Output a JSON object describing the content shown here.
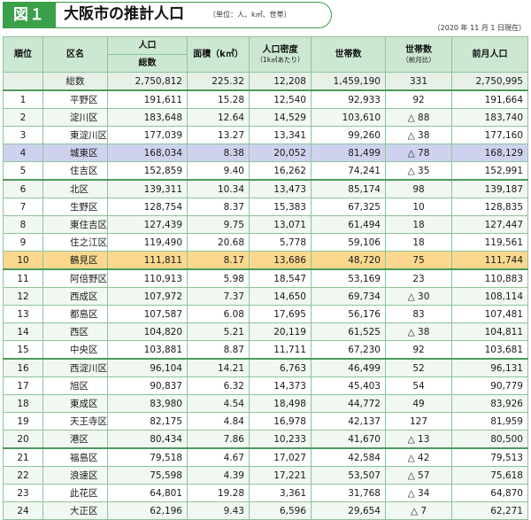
{
  "header": {
    "fig_label": "図１",
    "title": "大阪市の推計人口",
    "unit_note": "（単位：人、k㎡、世帯）",
    "date_note": "（2020 年 11 月 1 日現在）"
  },
  "columns": {
    "rank": "順位",
    "ward": "区名",
    "population_top": "人口",
    "population_sub": "総数",
    "area": "面積（k㎡）",
    "density": "人口密度",
    "density_sub": "（1k㎡あたり）",
    "households": "世帯数",
    "household_change": "世帯数",
    "household_change_sub": "（前月比）",
    "prev_month": "前月人口"
  },
  "total_row": {
    "label": "総数",
    "population": "2,750,812",
    "area": "225.32",
    "density": "12,208",
    "households": "1,459,190",
    "change": "331",
    "prev": "2,750,995"
  },
  "rows": [
    {
      "rank": "1",
      "ward": "平野区",
      "pop": "191,611",
      "area": "15.28",
      "density": "12,540",
      "hh": "92,933",
      "chg": "92",
      "prev": "191,664"
    },
    {
      "rank": "2",
      "ward": "淀川区",
      "pop": "183,648",
      "area": "12.64",
      "density": "14,529",
      "hh": "103,610",
      "chg": "△ 88",
      "prev": "183,740"
    },
    {
      "rank": "3",
      "ward": "東淀川区",
      "pop": "177,039",
      "area": "13.27",
      "density": "13,341",
      "hh": "99,260",
      "chg": "△ 38",
      "prev": "177,160"
    },
    {
      "rank": "4",
      "ward": "城東区",
      "pop": "168,034",
      "area": "8.38",
      "density": "20,052",
      "hh": "81,499",
      "chg": "△ 78",
      "prev": "168,129"
    },
    {
      "rank": "5",
      "ward": "住吉区",
      "pop": "152,859",
      "area": "9.40",
      "density": "16,262",
      "hh": "74,241",
      "chg": "△ 35",
      "prev": "152,991"
    },
    {
      "rank": "6",
      "ward": "北区",
      "pop": "139,311",
      "area": "10.34",
      "density": "13,473",
      "hh": "85,174",
      "chg": "98",
      "prev": "139,187"
    },
    {
      "rank": "7",
      "ward": "生野区",
      "pop": "128,754",
      "area": "8.37",
      "density": "15,383",
      "hh": "67,325",
      "chg": "10",
      "prev": "128,835"
    },
    {
      "rank": "8",
      "ward": "東住吉区",
      "pop": "127,439",
      "area": "9.75",
      "density": "13,071",
      "hh": "61,494",
      "chg": "18",
      "prev": "127,447"
    },
    {
      "rank": "9",
      "ward": "住之江区",
      "pop": "119,490",
      "area": "20.68",
      "density": "5,778",
      "hh": "59,106",
      "chg": "18",
      "prev": "119,561"
    },
    {
      "rank": "10",
      "ward": "鶴見区",
      "pop": "111,811",
      "area": "8.17",
      "density": "13,686",
      "hh": "48,720",
      "chg": "75",
      "prev": "111,744"
    },
    {
      "rank": "11",
      "ward": "阿倍野区",
      "pop": "110,913",
      "area": "5.98",
      "density": "18,547",
      "hh": "53,169",
      "chg": "23",
      "prev": "110,883"
    },
    {
      "rank": "12",
      "ward": "西成区",
      "pop": "107,972",
      "area": "7.37",
      "density": "14,650",
      "hh": "69,734",
      "chg": "△ 30",
      "prev": "108,114"
    },
    {
      "rank": "13",
      "ward": "都島区",
      "pop": "107,587",
      "area": "6.08",
      "density": "17,695",
      "hh": "56,176",
      "chg": "83",
      "prev": "107,481"
    },
    {
      "rank": "14",
      "ward": "西区",
      "pop": "104,820",
      "area": "5.21",
      "density": "20,119",
      "hh": "61,525",
      "chg": "△ 38",
      "prev": "104,811"
    },
    {
      "rank": "15",
      "ward": "中央区",
      "pop": "103,881",
      "area": "8.87",
      "density": "11,711",
      "hh": "67,230",
      "chg": "92",
      "prev": "103,681"
    },
    {
      "rank": "16",
      "ward": "西淀川区",
      "pop": "96,104",
      "area": "14.21",
      "density": "6,763",
      "hh": "46,499",
      "chg": "52",
      "prev": "96,131"
    },
    {
      "rank": "17",
      "ward": "旭区",
      "pop": "90,837",
      "area": "6.32",
      "density": "14,373",
      "hh": "45,403",
      "chg": "54",
      "prev": "90,779"
    },
    {
      "rank": "18",
      "ward": "東成区",
      "pop": "83,980",
      "area": "4.54",
      "density": "18,498",
      "hh": "44,772",
      "chg": "49",
      "prev": "83,926"
    },
    {
      "rank": "19",
      "ward": "天王寺区",
      "pop": "82,175",
      "area": "4.84",
      "density": "16,978",
      "hh": "42,137",
      "chg": "127",
      "prev": "81,959"
    },
    {
      "rank": "20",
      "ward": "港区",
      "pop": "80,434",
      "area": "7.86",
      "density": "10,233",
      "hh": "41,670",
      "chg": "△ 13",
      "prev": "80,500"
    },
    {
      "rank": "21",
      "ward": "福島区",
      "pop": "79,518",
      "area": "4.67",
      "density": "17,027",
      "hh": "42,584",
      "chg": "△ 42",
      "prev": "79,513"
    },
    {
      "rank": "22",
      "ward": "浪速区",
      "pop": "75,598",
      "area": "4.39",
      "density": "17,221",
      "hh": "53,507",
      "chg": "△ 57",
      "prev": "75,618"
    },
    {
      "rank": "23",
      "ward": "此花区",
      "pop": "64,801",
      "area": "19.28",
      "density": "3,361",
      "hh": "31,768",
      "chg": "△ 34",
      "prev": "64,870"
    },
    {
      "rank": "24",
      "ward": "大正区",
      "pop": "62,196",
      "area": "9.43",
      "density": "6,596",
      "hh": "29,654",
      "chg": "△ 7",
      "prev": "62,271"
    }
  ],
  "colors": {
    "accent_green": "#3aa04a",
    "header_bg": "#cde8d2",
    "highlight_blue": "#cfd2ee",
    "highlight_yellow": "#fbd88e"
  }
}
